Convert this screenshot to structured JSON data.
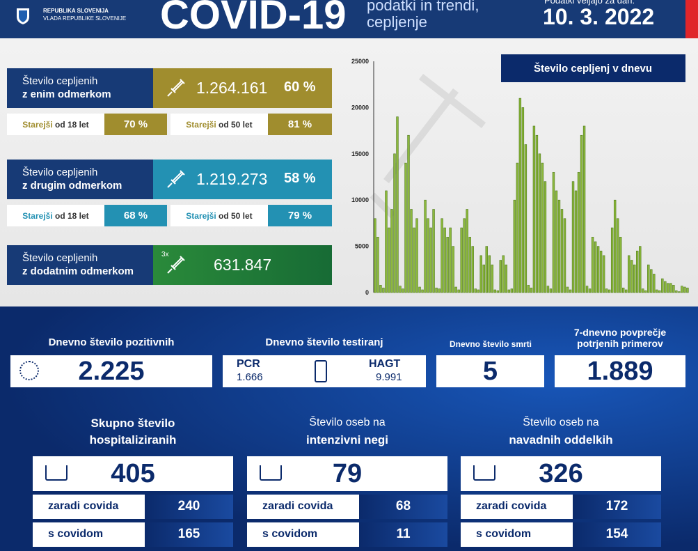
{
  "header": {
    "country": "REPUBLIKA SLOVENIJA",
    "government": "VLADA REPUBLIKE SLOVENIJE",
    "title": "COVID-19",
    "subtitle": [
      "podatki in trendi,",
      "cepljenje"
    ],
    "date_label": "Podatki veljajo za dan:",
    "date": "10. 3. 2022"
  },
  "vaccination": [
    {
      "label": [
        "Število cepljenih",
        "z enim odmerkom"
      ],
      "count": "1.264.161",
      "percent": "60 %",
      "sub": [
        {
          "label": [
            "Starejši",
            "od 18 let"
          ],
          "value": "70 %"
        },
        {
          "label": [
            "Starejši",
            "od 50 let"
          ],
          "value": "81 %"
        }
      ]
    },
    {
      "label": [
        "Število cepljenih",
        "z drugim odmerkom"
      ],
      "count": "1.219.273",
      "percent": "58 %",
      "sub": [
        {
          "label": [
            "Starejši",
            "od 18 let"
          ],
          "value": "68 %"
        },
        {
          "label": [
            "Starejši",
            "od 50 let"
          ],
          "value": "79 %"
        }
      ]
    },
    {
      "label": [
        "Število cepljenih",
        "z dodatnim odmerkom"
      ],
      "icon_label": "3x",
      "count": "631.847"
    }
  ],
  "chart_data": {
    "type": "bar",
    "title": "Število cepljenj v dnevu",
    "color": "#8cb83c",
    "values": [
      8000,
      6000,
      800,
      500,
      11000,
      7000,
      9000,
      15000,
      19000,
      700,
      400,
      14000,
      17000,
      9000,
      7000,
      8000,
      600,
      300,
      10000,
      8000,
      7000,
      9000,
      500,
      400,
      8000,
      7000,
      6000,
      7000,
      5000,
      600,
      300,
      7000,
      8000,
      9000,
      6000,
      5000,
      400,
      300,
      4000,
      3000,
      5000,
      4000,
      3000,
      300,
      200,
      3500,
      4000,
      3000,
      300,
      400,
      10000,
      14000,
      21000,
      20000,
      16000,
      800,
      500,
      18000,
      17000,
      15000,
      14000,
      12000,
      700,
      400,
      13000,
      11000,
      10000,
      9000,
      8000,
      600,
      300,
      12000,
      11000,
      13000,
      17000,
      18000,
      700,
      400,
      6000,
      5500,
      5000,
      4500,
      4000,
      400,
      300,
      7000,
      10000,
      8000,
      6000,
      500,
      300,
      4000,
      3500,
      3000,
      4500,
      5000,
      400,
      200,
      3000,
      2500,
      2000,
      300,
      200,
      1500,
      1200,
      1000,
      1000,
      800,
      200,
      100,
      700,
      600,
      500
    ],
    "ylim": [
      0,
      25000
    ],
    "yticks": [
      0,
      5000,
      10000,
      15000,
      20000,
      25000
    ]
  },
  "daily": {
    "positive": {
      "label": "Dnevno število pozitivnih",
      "value": "2.225"
    },
    "tests": {
      "label": "Dnevno število testiranj",
      "pcr_label": "PCR",
      "pcr": "1.666",
      "hagt_label": "HAGT",
      "hagt": "9.991"
    },
    "deaths": {
      "label": "Dnevno število smrti",
      "value": "5"
    },
    "average": {
      "label": [
        "7-dnevno povprečje",
        "potrjenih primerov"
      ],
      "value": "1.889"
    }
  },
  "hospital": [
    {
      "title": [
        "Skupno število",
        "hospitaliziranih"
      ],
      "total": "405",
      "rows": [
        {
          "label": "zaradi covida",
          "value": "240"
        },
        {
          "label": "s covidom",
          "value": "165"
        }
      ]
    },
    {
      "title": [
        "Število oseb na",
        "intenzivni negi"
      ],
      "total": "79",
      "rows": [
        {
          "label": "zaradi covida",
          "value": "68"
        },
        {
          "label": "s covidom",
          "value": "11"
        }
      ]
    },
    {
      "title": [
        "Število oseb na",
        "navadnih oddelkih"
      ],
      "total": "326",
      "rows": [
        {
          "label": "zaradi covida",
          "value": "172"
        },
        {
          "label": "s covidom",
          "value": "154"
        }
      ]
    }
  ]
}
